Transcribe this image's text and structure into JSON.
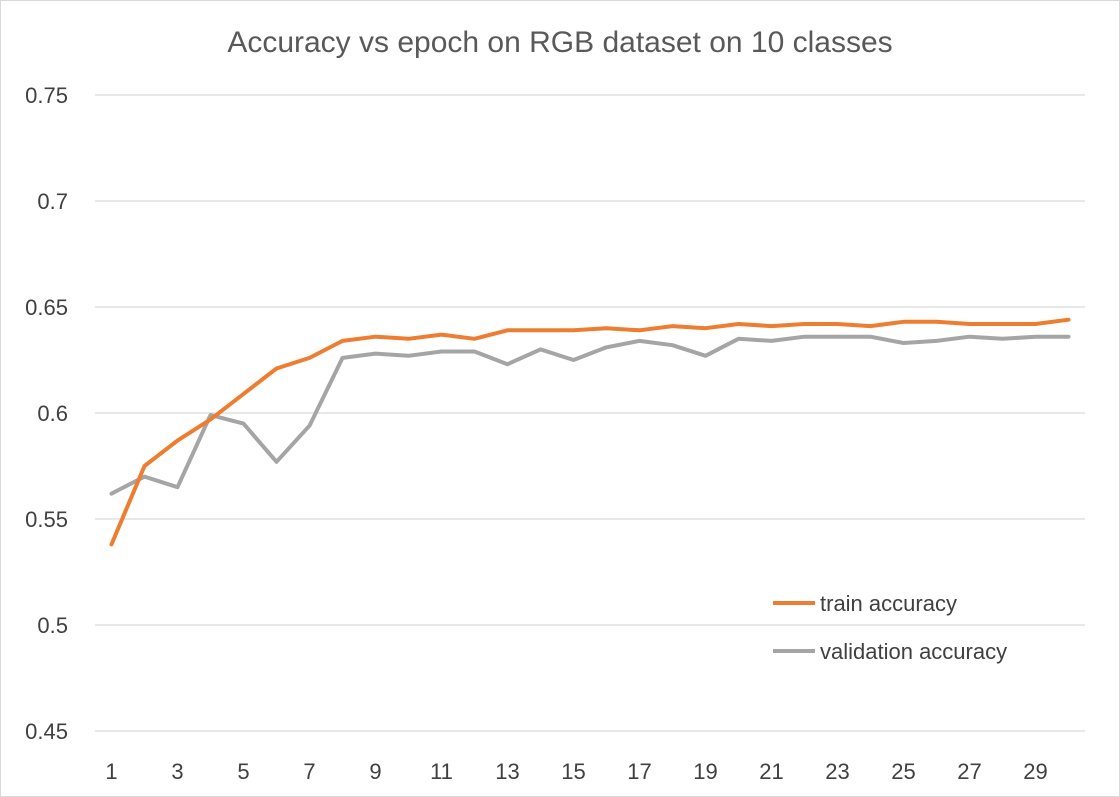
{
  "colors": {
    "train": "#ED7D31",
    "validation": "#A5A5A5",
    "grid": "#D9D9D9"
  },
  "chart_data": {
    "type": "line",
    "title": "Accuracy vs epoch on RGB dataset on 10 classes",
    "xlabel": "",
    "ylabel": "",
    "x": [
      1,
      2,
      3,
      4,
      5,
      6,
      7,
      8,
      9,
      10,
      11,
      12,
      13,
      14,
      15,
      16,
      17,
      18,
      19,
      20,
      21,
      22,
      23,
      24,
      25,
      26,
      27,
      28,
      29,
      30
    ],
    "x_tick_labels": [
      "1",
      "3",
      "5",
      "7",
      "9",
      "11",
      "13",
      "15",
      "17",
      "19",
      "21",
      "23",
      "25",
      "27",
      "29"
    ],
    "ylim": [
      0.45,
      0.75
    ],
    "y_ticks": [
      0.45,
      0.5,
      0.55,
      0.6,
      0.65,
      0.7,
      0.75
    ],
    "y_tick_labels": [
      "0.45",
      "0.5",
      "0.55",
      "0.6",
      "0.65",
      "0.7",
      "0.75"
    ],
    "grid": true,
    "legend_position": "inside-bottom-right",
    "series": [
      {
        "name": "train accuracy",
        "color": "#ED7D31",
        "values": [
          0.538,
          0.575,
          0.587,
          0.597,
          0.609,
          0.621,
          0.626,
          0.634,
          0.636,
          0.635,
          0.637,
          0.635,
          0.639,
          0.639,
          0.639,
          0.64,
          0.639,
          0.641,
          0.64,
          0.642,
          0.641,
          0.642,
          0.642,
          0.641,
          0.643,
          0.643,
          0.642,
          0.642,
          0.642,
          0.644
        ]
      },
      {
        "name": "validation accuracy",
        "color": "#A5A5A5",
        "values": [
          0.562,
          0.57,
          0.565,
          0.599,
          0.595,
          0.577,
          0.594,
          0.626,
          0.628,
          0.627,
          0.629,
          0.629,
          0.623,
          0.63,
          0.625,
          0.631,
          0.634,
          0.632,
          0.627,
          0.635,
          0.634,
          0.636,
          0.636,
          0.636,
          0.633,
          0.634,
          0.636,
          0.635,
          0.636,
          0.636
        ]
      }
    ]
  }
}
